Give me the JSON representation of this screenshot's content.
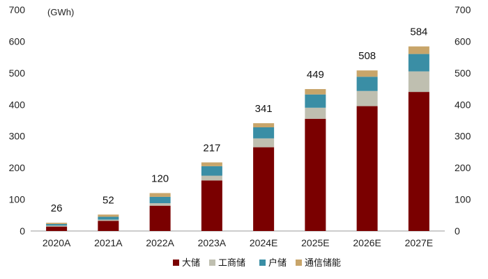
{
  "chart_data": {
    "type": "bar",
    "stacked": true,
    "unit_label": "(GWh)",
    "categories": [
      "2020A",
      "2021A",
      "2022A",
      "2023A",
      "2024E",
      "2025E",
      "2026E",
      "2027E"
    ],
    "totals": [
      26,
      52,
      120,
      217,
      341,
      449,
      508,
      584
    ],
    "series": [
      {
        "name": "大储",
        "color": "#7a0000",
        "values": [
          14,
          32,
          80,
          160,
          265,
          355,
          395,
          440
        ]
      },
      {
        "name": "工商储",
        "color": "#bfbfb0",
        "values": [
          3,
          4,
          8,
          15,
          28,
          35,
          48,
          65
        ]
      },
      {
        "name": "户储",
        "color": "#3a8ea5",
        "values": [
          5,
          9,
          20,
          30,
          35,
          42,
          45,
          55
        ]
      },
      {
        "name": "通信储能",
        "color": "#c8a56a",
        "values": [
          4,
          7,
          12,
          12,
          13,
          17,
          20,
          24
        ]
      }
    ],
    "ylim": [
      0,
      700
    ],
    "yticks": [
      0,
      100,
      200,
      300,
      400,
      500,
      600,
      700
    ],
    "grid": false,
    "legend_position": "bottom",
    "secondary_y_axis": true
  }
}
